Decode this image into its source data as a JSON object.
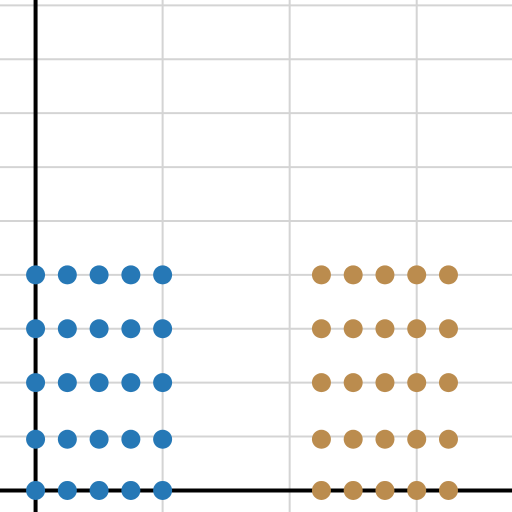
{
  "chart_data": {
    "type": "scatter",
    "title": "",
    "xlabel": "",
    "ylabel": "",
    "grid": true,
    "legend": "none",
    "xlim": [
      -0.28,
      3.75
    ],
    "ylim": [
      -0.4,
      9.1
    ],
    "x_gridlines": [
      1,
      2,
      3
    ],
    "y_gridlines": [
      1,
      2,
      3,
      4,
      5,
      6,
      7,
      8,
      9
    ],
    "series": [
      {
        "color": "#2678b6",
        "points": [
          [
            0.0,
            0.0
          ],
          [
            0.25,
            0.0
          ],
          [
            0.5,
            0.0
          ],
          [
            0.75,
            0.0
          ],
          [
            1.0,
            0.0
          ],
          [
            0.0,
            0.95
          ],
          [
            0.25,
            0.95
          ],
          [
            0.5,
            0.95
          ],
          [
            0.75,
            0.95
          ],
          [
            1.0,
            0.95
          ],
          [
            0.0,
            2.0
          ],
          [
            0.25,
            2.0
          ],
          [
            0.5,
            2.0
          ],
          [
            0.75,
            2.0
          ],
          [
            1.0,
            2.0
          ],
          [
            0.0,
            3.0
          ],
          [
            0.25,
            3.0
          ],
          [
            0.5,
            3.0
          ],
          [
            0.75,
            3.0
          ],
          [
            1.0,
            3.0
          ],
          [
            0.0,
            4.0
          ],
          [
            0.25,
            4.0
          ],
          [
            0.5,
            4.0
          ],
          [
            0.75,
            4.0
          ],
          [
            1.0,
            4.0
          ]
        ]
      },
      {
        "color": "#bb8c4e",
        "points": [
          [
            2.25,
            0.0
          ],
          [
            2.5,
            0.0
          ],
          [
            2.75,
            0.0
          ],
          [
            3.0,
            0.0
          ],
          [
            3.25,
            0.0
          ],
          [
            2.25,
            0.95
          ],
          [
            2.5,
            0.95
          ],
          [
            2.75,
            0.95
          ],
          [
            3.0,
            0.95
          ],
          [
            3.25,
            0.95
          ],
          [
            2.25,
            2.0
          ],
          [
            2.5,
            2.0
          ],
          [
            2.75,
            2.0
          ],
          [
            3.0,
            2.0
          ],
          [
            3.25,
            2.0
          ],
          [
            2.25,
            3.0
          ],
          [
            2.5,
            3.0
          ],
          [
            2.75,
            3.0
          ],
          [
            3.0,
            3.0
          ],
          [
            3.25,
            3.0
          ],
          [
            2.25,
            4.0
          ],
          [
            2.5,
            4.0
          ],
          [
            2.75,
            4.0
          ],
          [
            3.0,
            4.0
          ],
          [
            3.25,
            4.0
          ]
        ]
      }
    ]
  }
}
